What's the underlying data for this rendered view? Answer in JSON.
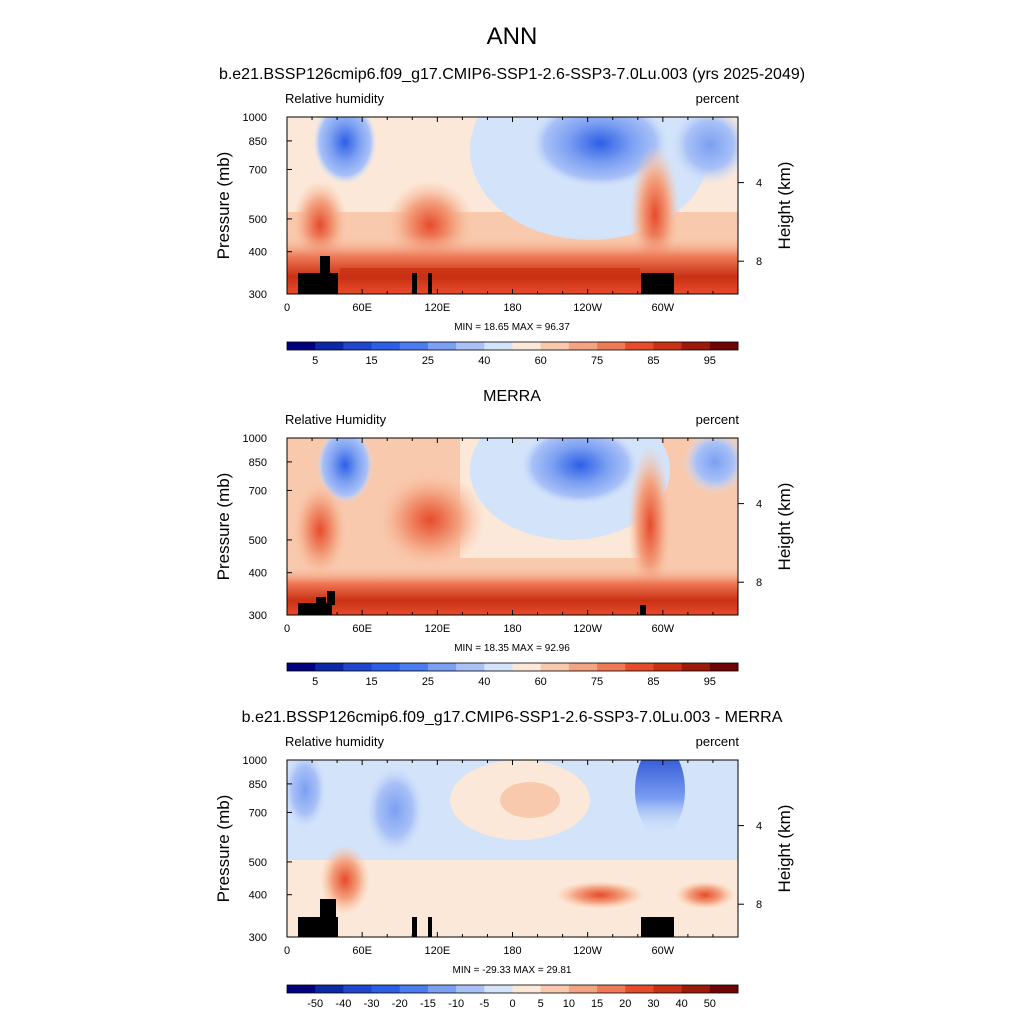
{
  "figure": {
    "season": "ANN",
    "background": "#ffffff"
  },
  "chart_data": [
    {
      "type": "heatmap",
      "title": "b.e21.BSSP126cmip6.f09_g17.CMIP6-SSP1-2.6-SSP3-7.0Lu.003 (yrs 2025-2049)",
      "left_label": "Relative humidity",
      "right_label": "percent",
      "ylabel": "Pressure (mb)",
      "y2label": "Height (km)",
      "x_ticks": [
        "0",
        "60E",
        "120E",
        "180",
        "120W",
        "60W"
      ],
      "x_tick_lon": [
        0,
        60,
        120,
        180,
        240,
        300
      ],
      "xlim": [
        0,
        360
      ],
      "y_ticks": [
        "300",
        "400",
        "500",
        "700",
        "850",
        "1000"
      ],
      "y_tick_p": [
        300,
        400,
        500,
        700,
        850,
        1000
      ],
      "ylim": [
        1000,
        300
      ],
      "log_pressure": true,
      "y2_ticks": [
        "8",
        "4"
      ],
      "y2_tick_p": [
        375,
        640
      ],
      "min_label": "MIN =  18.65  MAX =  96.37",
      "colorbar_labels": [
        "5",
        "15",
        "25",
        "40",
        "60",
        "75",
        "85",
        "95"
      ],
      "colorbar_colors": [
        "#00007f",
        "#0b29a6",
        "#1f46cc",
        "#2d5fe6",
        "#4b7cf0",
        "#7b9ff2",
        "#a9c1f7",
        "#d3e3fa",
        "#fce8d8",
        "#f9c9ad",
        "#f4a482",
        "#ef7a56",
        "#e64b2b",
        "#c93114",
        "#9c1a0a",
        "#6f0404"
      ]
    },
    {
      "type": "heatmap",
      "title": "MERRA",
      "left_label": "Relative Humidity",
      "right_label": "percent",
      "ylabel": "Pressure (mb)",
      "y2label": "Height (km)",
      "x_ticks": [
        "0",
        "60E",
        "120E",
        "180",
        "120W",
        "60W"
      ],
      "x_tick_lon": [
        0,
        60,
        120,
        180,
        240,
        300
      ],
      "xlim": [
        0,
        360
      ],
      "y_ticks": [
        "300",
        "400",
        "500",
        "700",
        "850",
        "1000"
      ],
      "y_tick_p": [
        300,
        400,
        500,
        700,
        850,
        1000
      ],
      "ylim": [
        1000,
        300
      ],
      "log_pressure": true,
      "y2_ticks": [
        "8",
        "4"
      ],
      "y2_tick_p": [
        375,
        640
      ],
      "min_label": "MIN =  18.35  MAX =  92.96",
      "colorbar_labels": [
        "5",
        "15",
        "25",
        "40",
        "60",
        "75",
        "85",
        "95"
      ],
      "colorbar_colors": [
        "#00007f",
        "#0b29a6",
        "#1f46cc",
        "#2d5fe6",
        "#4b7cf0",
        "#7b9ff2",
        "#a9c1f7",
        "#d3e3fa",
        "#fce8d8",
        "#f9c9ad",
        "#f4a482",
        "#ef7a56",
        "#e64b2b",
        "#c93114",
        "#9c1a0a",
        "#6f0404"
      ]
    },
    {
      "type": "heatmap",
      "title": "b.e21.BSSP126cmip6.f09_g17.CMIP6-SSP1-2.6-SSP3-7.0Lu.003 - MERRA",
      "left_label": "Relative humidity",
      "right_label": "percent",
      "ylabel": "Pressure (mb)",
      "y2label": "Height (km)",
      "x_ticks": [
        "0",
        "60E",
        "120E",
        "180",
        "120W",
        "60W"
      ],
      "x_tick_lon": [
        0,
        60,
        120,
        180,
        240,
        300
      ],
      "xlim": [
        0,
        360
      ],
      "y_ticks": [
        "300",
        "400",
        "500",
        "700",
        "850",
        "1000"
      ],
      "y_tick_p": [
        300,
        400,
        500,
        700,
        850,
        1000
      ],
      "ylim": [
        1000,
        300
      ],
      "log_pressure": true,
      "y2_ticks": [
        "8",
        "4"
      ],
      "y2_tick_p": [
        375,
        640
      ],
      "min_label": "MIN = -29.33  MAX =  29.81",
      "colorbar_labels": [
        "-50",
        "-40",
        "-30",
        "-20",
        "-15",
        "-10",
        "-5",
        "0",
        "5",
        "10",
        "15",
        "20",
        "30",
        "40",
        "50"
      ],
      "colorbar_colors": [
        "#00007f",
        "#0b29a6",
        "#1f46cc",
        "#2d5fe6",
        "#4b7cf0",
        "#7b9ff2",
        "#a9c1f7",
        "#d3e3fa",
        "#fce8d8",
        "#f9c9ad",
        "#f4a482",
        "#ef7a56",
        "#e64b2b",
        "#c93114",
        "#9c1a0a",
        "#6f0404"
      ]
    }
  ]
}
